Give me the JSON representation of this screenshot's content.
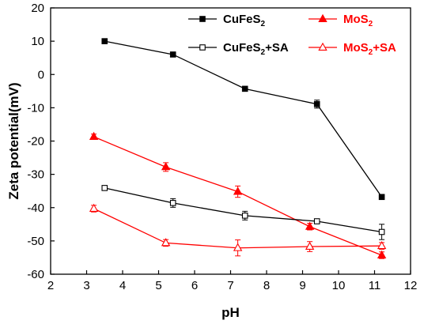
{
  "chart_data": {
    "type": "line",
    "xlabel": "pH",
    "ylabel": "Zeta potential(mV)",
    "xlim": [
      2,
      12
    ],
    "ylim": [
      -60,
      20
    ],
    "xticks": [
      2,
      3,
      4,
      5,
      6,
      7,
      8,
      9,
      10,
      11,
      12
    ],
    "yticks": [
      -60,
      -50,
      -40,
      -30,
      -20,
      -10,
      0,
      10,
      20
    ],
    "grid": false,
    "legend_position": "top-right",
    "series": [
      {
        "name": "CuFeS2",
        "legend": {
          "base": "CuFeS",
          "sub": "2",
          "suffix": ""
        },
        "color": "#000000",
        "marker": "square-filled",
        "x": [
          3.5,
          5.4,
          7.4,
          9.4,
          11.2
        ],
        "y": [
          10,
          6,
          -4.3,
          -8.9,
          -36.8
        ],
        "err": [
          0,
          0,
          0,
          1.2,
          0
        ]
      },
      {
        "name": "MoS2",
        "legend": {
          "base": "MoS",
          "sub": "2",
          "suffix": ""
        },
        "color": "#ff0000",
        "marker": "triangle-filled",
        "x": [
          3.2,
          5.2,
          7.2,
          9.2,
          11.2
        ],
        "y": [
          -18.7,
          -27.8,
          -35.2,
          -45.7,
          -54.3
        ],
        "err": [
          0.8,
          1.3,
          1.7,
          1.0,
          1.0
        ]
      },
      {
        "name": "CuFeS2+SA",
        "legend": {
          "base": "CuFeS",
          "sub": "2",
          "suffix": "+SA"
        },
        "color": "#000000",
        "marker": "square-open",
        "x": [
          3.5,
          5.4,
          7.4,
          9.4,
          11.2
        ],
        "y": [
          -34.1,
          -38.6,
          -42.4,
          -44.1,
          -47.3
        ],
        "err": [
          0,
          1.3,
          1.3,
          0,
          2.3
        ]
      },
      {
        "name": "MoS2+SA",
        "legend": {
          "base": "MoS",
          "sub": "2",
          "suffix": "+SA"
        },
        "color": "#ff0000",
        "marker": "triangle-open",
        "x": [
          3.2,
          5.2,
          7.2,
          9.2,
          11.2
        ],
        "y": [
          -40.3,
          -50.6,
          -52.1,
          -51.7,
          -51.5
        ],
        "err": [
          1.0,
          1.0,
          2.4,
          1.5,
          1.0
        ]
      }
    ]
  }
}
